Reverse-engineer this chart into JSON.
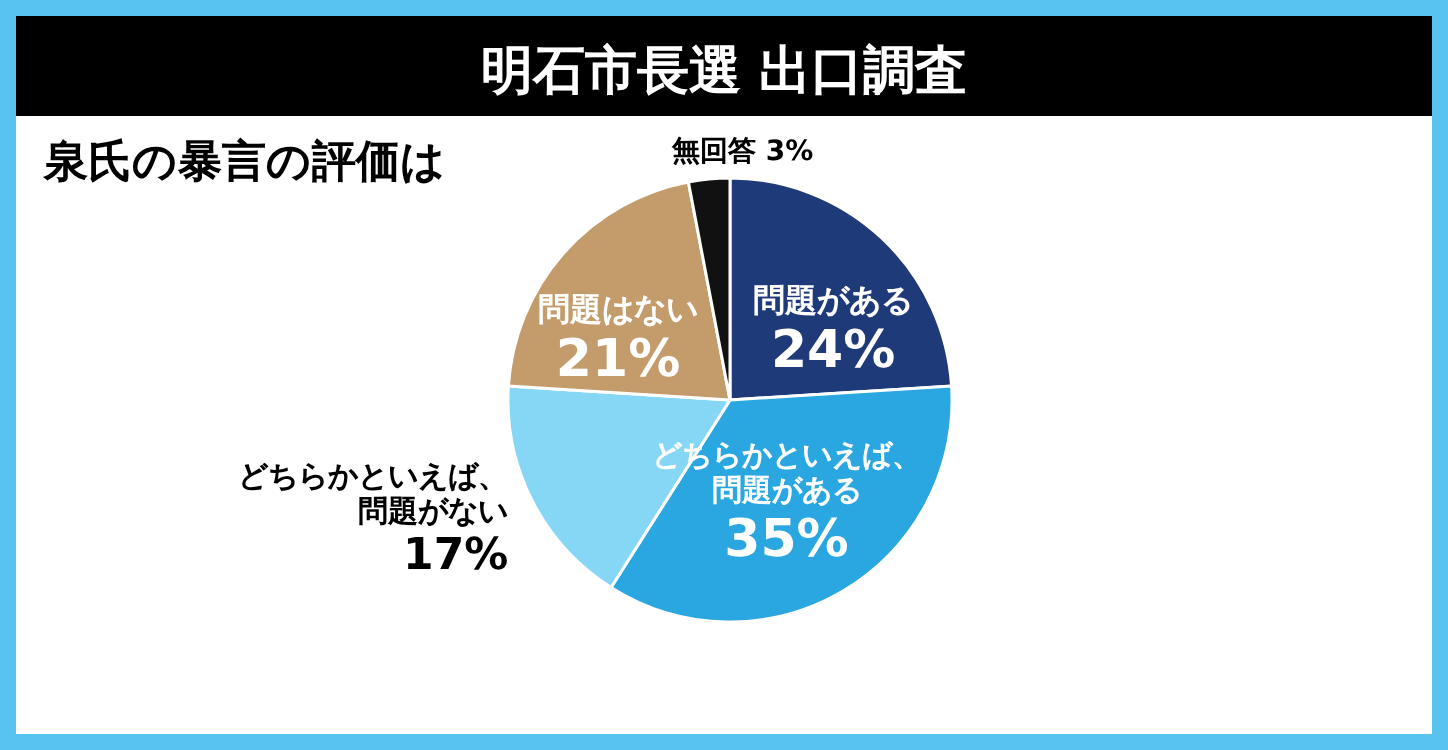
{
  "chart_data": {
    "type": "pie",
    "title": "明石市長選 出口調査",
    "subtitle": "泉氏の暴言の評価は",
    "categories": [
      "問題がある",
      "どちらかといえば、問題がある",
      "どちらかといえば、問題がない",
      "問題はない",
      "無回答"
    ],
    "values": [
      24,
      35,
      17,
      21,
      3
    ],
    "value_labels": [
      "24%",
      "35%",
      "17%",
      "21%",
      "3%"
    ],
    "colors": [
      "#1f3a78",
      "#2aa6e0",
      "#86d6f6",
      "#c49b6b",
      "#111111"
    ]
  }
}
